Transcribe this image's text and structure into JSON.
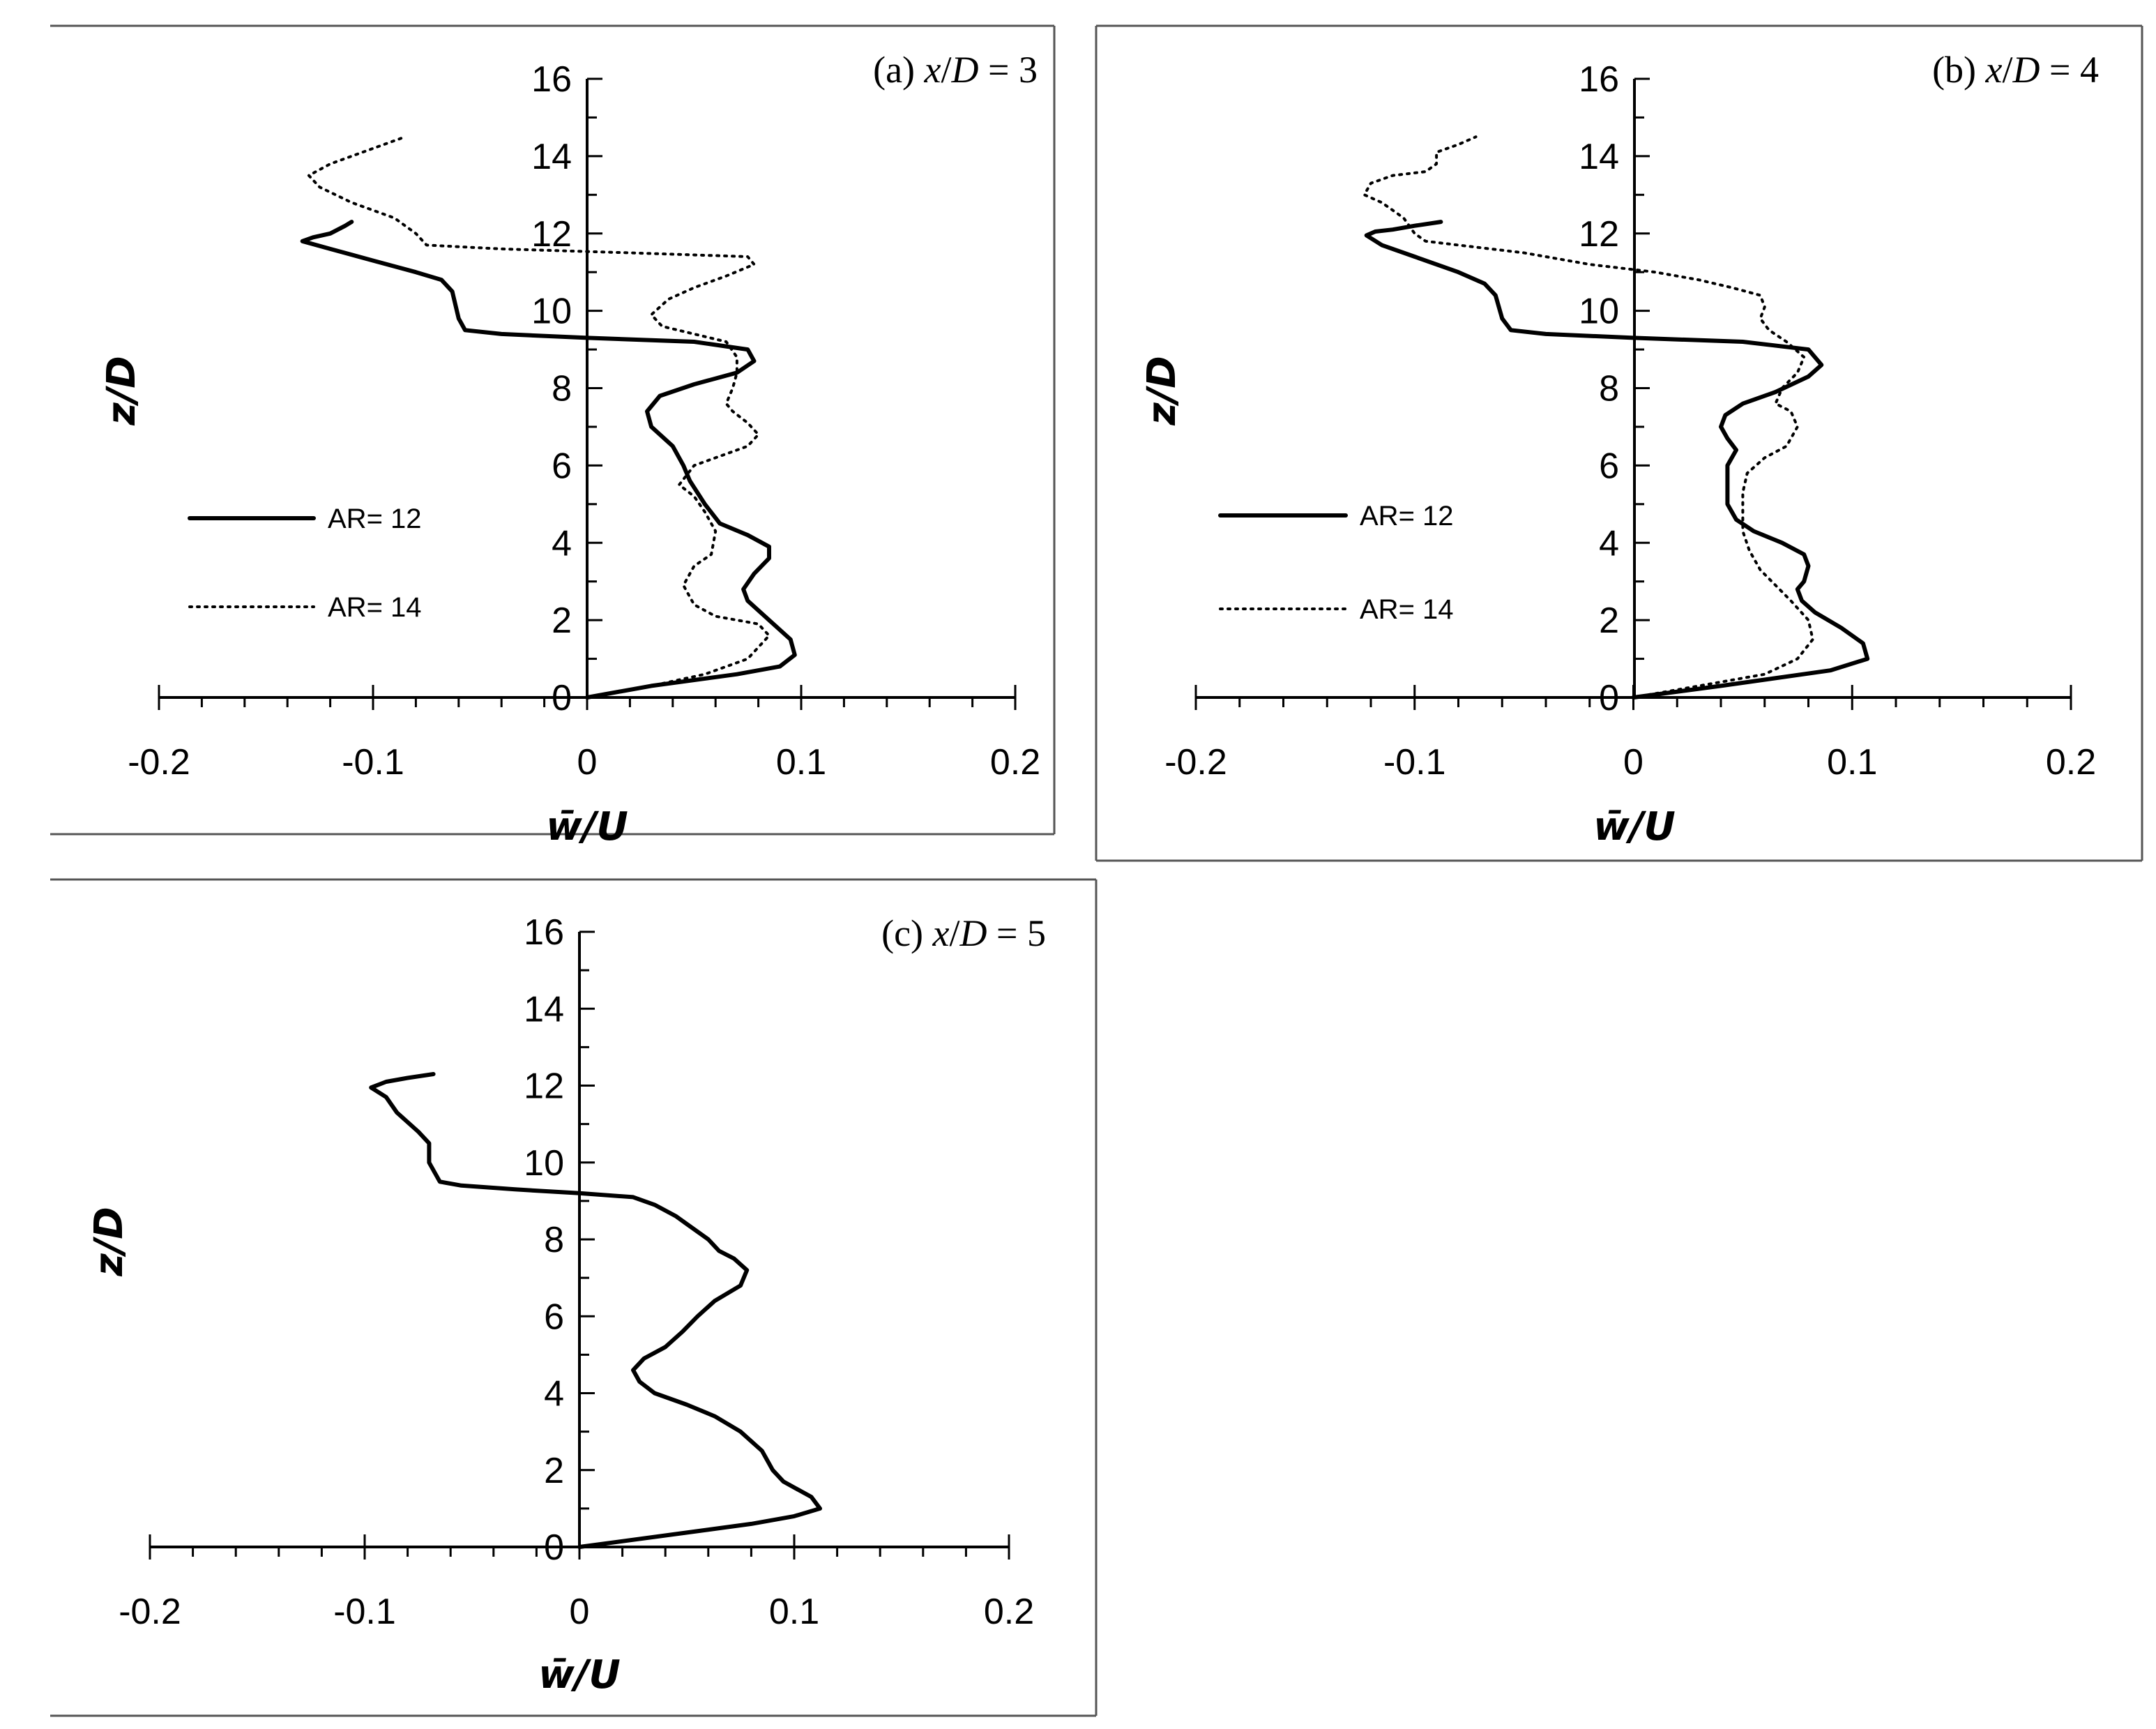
{
  "chart_data": [
    {
      "type": "line",
      "title": [
        "(a) ",
        "x",
        "/",
        "D",
        " = 3"
      ],
      "xlabel": "w̄/U",
      "ylabel": "z/D",
      "xlim": [
        -0.2,
        0.2
      ],
      "ylim": [
        0,
        16
      ],
      "x_ticks": [
        "-0.2",
        "-0.1",
        "0",
        "0.1",
        "0.2"
      ],
      "y_ticks": [
        "0",
        "2",
        "4",
        "6",
        "8",
        "10",
        "12",
        "14",
        "16"
      ],
      "legend": "left",
      "series": [
        {
          "name": "AR= 12",
          "style": "solid",
          "points": [
            [
              0,
              0
            ],
            [
              0.03,
              0.3
            ],
            [
              0.07,
              0.6
            ],
            [
              0.09,
              0.8
            ],
            [
              0.097,
              1.1
            ],
            [
              0.095,
              1.5
            ],
            [
              0.085,
              2.0
            ],
            [
              0.075,
              2.5
            ],
            [
              0.073,
              2.8
            ],
            [
              0.078,
              3.2
            ],
            [
              0.085,
              3.6
            ],
            [
              0.085,
              3.9
            ],
            [
              0.075,
              4.2
            ],
            [
              0.062,
              4.5
            ],
            [
              0.055,
              5.0
            ],
            [
              0.048,
              5.6
            ],
            [
              0.045,
              6.0
            ],
            [
              0.04,
              6.5
            ],
            [
              0.03,
              7.0
            ],
            [
              0.028,
              7.4
            ],
            [
              0.034,
              7.8
            ],
            [
              0.05,
              8.1
            ],
            [
              0.07,
              8.4
            ],
            [
              0.078,
              8.7
            ],
            [
              0.075,
              9.0
            ],
            [
              0.05,
              9.2
            ],
            [
              0,
              9.3
            ],
            [
              -0.04,
              9.4
            ],
            [
              -0.057,
              9.5
            ],
            [
              -0.06,
              9.8
            ],
            [
              -0.063,
              10.5
            ],
            [
              -0.068,
              10.8
            ],
            [
              -0.08,
              11.0
            ],
            [
              -0.1,
              11.3
            ],
            [
              -0.12,
              11.6
            ],
            [
              -0.133,
              11.8
            ],
            [
              -0.128,
              11.9
            ],
            [
              -0.12,
              12.0
            ],
            [
              -0.113,
              12.2
            ],
            [
              -0.11,
              12.3
            ]
          ]
        },
        {
          "name": "AR= 14",
          "style": "dotted",
          "points": [
            [
              0,
              0
            ],
            [
              0.03,
              0.3
            ],
            [
              0.055,
              0.6
            ],
            [
              0.075,
              1.0
            ],
            [
              0.085,
              1.6
            ],
            [
              0.08,
              1.9
            ],
            [
              0.07,
              2.0
            ],
            [
              0.06,
              2.1
            ],
            [
              0.05,
              2.4
            ],
            [
              0.045,
              2.9
            ],
            [
              0.05,
              3.4
            ],
            [
              0.058,
              3.7
            ],
            [
              0.06,
              4.3
            ],
            [
              0.055,
              4.8
            ],
            [
              0.05,
              5.2
            ],
            [
              0.043,
              5.5
            ],
            [
              0.05,
              6.0
            ],
            [
              0.06,
              6.2
            ],
            [
              0.075,
              6.5
            ],
            [
              0.08,
              6.8
            ],
            [
              0.075,
              7.1
            ],
            [
              0.068,
              7.4
            ],
            [
              0.065,
              7.6
            ],
            [
              0.068,
              8.0
            ],
            [
              0.07,
              8.4
            ],
            [
              0.07,
              8.8
            ],
            [
              0.065,
              9.2
            ],
            [
              0.05,
              9.4
            ],
            [
              0.035,
              9.6
            ],
            [
              0.03,
              9.9
            ],
            [
              0.038,
              10.3
            ],
            [
              0.05,
              10.6
            ],
            [
              0.065,
              10.9
            ],
            [
              0.078,
              11.2
            ],
            [
              0.075,
              11.4
            ],
            [
              0.02,
              11.5
            ],
            [
              -0.04,
              11.6
            ],
            [
              -0.075,
              11.7
            ],
            [
              -0.08,
              12.0
            ],
            [
              -0.09,
              12.4
            ],
            [
              -0.11,
              12.8
            ],
            [
              -0.125,
              13.2
            ],
            [
              -0.13,
              13.5
            ],
            [
              -0.12,
              13.8
            ],
            [
              -0.1,
              14.2
            ],
            [
              -0.085,
              14.5
            ]
          ]
        }
      ]
    },
    {
      "type": "line",
      "title": [
        "(b) ",
        "x",
        "/",
        "D",
        " = 4"
      ],
      "xlabel": "w̄/U",
      "ylabel": "z/D",
      "xlim": [
        -0.2,
        0.2
      ],
      "ylim": [
        0,
        16
      ],
      "x_ticks": [
        "-0.2",
        "-0.1",
        "0",
        "0.1",
        "0.2"
      ],
      "y_ticks": [
        "0",
        "2",
        "4",
        "6",
        "8",
        "10",
        "12",
        "14",
        "16"
      ],
      "legend": "left",
      "series": [
        {
          "name": "AR= 12",
          "style": "solid",
          "points": [
            [
              0,
              0
            ],
            [
              0.04,
              0.3
            ],
            [
              0.09,
              0.7
            ],
            [
              0.107,
              1.0
            ],
            [
              0.105,
              1.4
            ],
            [
              0.095,
              1.8
            ],
            [
              0.083,
              2.2
            ],
            [
              0.077,
              2.5
            ],
            [
              0.075,
              2.8
            ],
            [
              0.078,
              3.0
            ],
            [
              0.08,
              3.4
            ],
            [
              0.078,
              3.7
            ],
            [
              0.068,
              4.0
            ],
            [
              0.055,
              4.3
            ],
            [
              0.047,
              4.6
            ],
            [
              0.043,
              5.0
            ],
            [
              0.043,
              5.5
            ],
            [
              0.043,
              6.0
            ],
            [
              0.047,
              6.4
            ],
            [
              0.043,
              6.7
            ],
            [
              0.04,
              7.0
            ],
            [
              0.042,
              7.3
            ],
            [
              0.05,
              7.6
            ],
            [
              0.065,
              7.9
            ],
            [
              0.08,
              8.3
            ],
            [
              0.086,
              8.6
            ],
            [
              0.08,
              9.0
            ],
            [
              0.05,
              9.2
            ],
            [
              0,
              9.3
            ],
            [
              -0.04,
              9.4
            ],
            [
              -0.056,
              9.5
            ],
            [
              -0.06,
              9.8
            ],
            [
              -0.063,
              10.4
            ],
            [
              -0.068,
              10.7
            ],
            [
              -0.08,
              11.0
            ],
            [
              -0.1,
              11.4
            ],
            [
              -0.115,
              11.7
            ],
            [
              -0.122,
              11.95
            ],
            [
              -0.118,
              12.05
            ],
            [
              -0.11,
              12.1
            ],
            [
              -0.1,
              12.2
            ],
            [
              -0.088,
              12.3
            ]
          ]
        },
        {
          "name": "AR= 14",
          "style": "dotted",
          "points": [
            [
              0,
              0
            ],
            [
              0.03,
              0.3
            ],
            [
              0.06,
              0.6
            ],
            [
              0.075,
              1.0
            ],
            [
              0.082,
              1.5
            ],
            [
              0.08,
              2.0
            ],
            [
              0.072,
              2.5
            ],
            [
              0.065,
              2.9
            ],
            [
              0.058,
              3.3
            ],
            [
              0.053,
              3.8
            ],
            [
              0.05,
              4.3
            ],
            [
              0.05,
              4.8
            ],
            [
              0.05,
              5.3
            ],
            [
              0.052,
              5.8
            ],
            [
              0.06,
              6.2
            ],
            [
              0.07,
              6.5
            ],
            [
              0.075,
              7.0
            ],
            [
              0.072,
              7.4
            ],
            [
              0.065,
              7.6
            ],
            [
              0.068,
              8.0
            ],
            [
              0.075,
              8.4
            ],
            [
              0.078,
              8.8
            ],
            [
              0.07,
              9.2
            ],
            [
              0.062,
              9.5
            ],
            [
              0.058,
              9.8
            ],
            [
              0.06,
              10.1
            ],
            [
              0.058,
              10.4
            ],
            [
              0.045,
              10.6
            ],
            [
              0.03,
              10.8
            ],
            [
              0.01,
              11.0
            ],
            [
              -0.02,
              11.2
            ],
            [
              -0.05,
              11.5
            ],
            [
              -0.08,
              11.7
            ],
            [
              -0.095,
              11.8
            ],
            [
              -0.1,
              12.0
            ],
            [
              -0.105,
              12.4
            ],
            [
              -0.115,
              12.8
            ],
            [
              -0.123,
              13.0
            ],
            [
              -0.12,
              13.3
            ],
            [
              -0.11,
              13.5
            ],
            [
              -0.095,
              13.6
            ],
            [
              -0.09,
              13.8
            ],
            [
              -0.09,
              14.1
            ],
            [
              -0.08,
              14.3
            ],
            [
              -0.072,
              14.5
            ]
          ]
        }
      ]
    },
    {
      "type": "line",
      "title": [
        "(c) ",
        "x",
        "/",
        "D",
        " = 5"
      ],
      "xlabel": "w̄/U",
      "ylabel": "z/D",
      "xlim": [
        -0.2,
        0.2
      ],
      "ylim": [
        0,
        16
      ],
      "x_ticks": [
        "-0.2",
        "-0.1",
        "0",
        "0.1",
        "0.2"
      ],
      "y_ticks": [
        "0",
        "2",
        "4",
        "6",
        "8",
        "10",
        "12",
        "14",
        "16"
      ],
      "series": [
        {
          "name": "AR= 12",
          "style": "solid",
          "points": [
            [
              0,
              0
            ],
            [
              0.04,
              0.3
            ],
            [
              0.08,
              0.6
            ],
            [
              0.1,
              0.8
            ],
            [
              0.112,
              1.0
            ],
            [
              0.108,
              1.3
            ],
            [
              0.095,
              1.7
            ],
            [
              0.09,
              2.0
            ],
            [
              0.085,
              2.5
            ],
            [
              0.075,
              3.0
            ],
            [
              0.063,
              3.4
            ],
            [
              0.05,
              3.7
            ],
            [
              0.035,
              4.0
            ],
            [
              0.028,
              4.3
            ],
            [
              0.025,
              4.6
            ],
            [
              0.03,
              4.9
            ],
            [
              0.04,
              5.2
            ],
            [
              0.048,
              5.6
            ],
            [
              0.055,
              6.0
            ],
            [
              0.063,
              6.4
            ],
            [
              0.075,
              6.8
            ],
            [
              0.078,
              7.2
            ],
            [
              0.072,
              7.5
            ],
            [
              0.065,
              7.7
            ],
            [
              0.06,
              8.0
            ],
            [
              0.05,
              8.4
            ],
            [
              0.045,
              8.6
            ],
            [
              0.035,
              8.9
            ],
            [
              0.025,
              9.1
            ],
            [
              0,
              9.2
            ],
            [
              -0.03,
              9.3
            ],
            [
              -0.055,
              9.4
            ],
            [
              -0.065,
              9.5
            ],
            [
              -0.07,
              10.0
            ],
            [
              -0.07,
              10.5
            ],
            [
              -0.075,
              10.8
            ],
            [
              -0.085,
              11.3
            ],
            [
              -0.09,
              11.7
            ],
            [
              -0.097,
              11.95
            ],
            [
              -0.09,
              12.1
            ],
            [
              -0.08,
              12.2
            ],
            [
              -0.068,
              12.3
            ]
          ]
        }
      ]
    }
  ]
}
